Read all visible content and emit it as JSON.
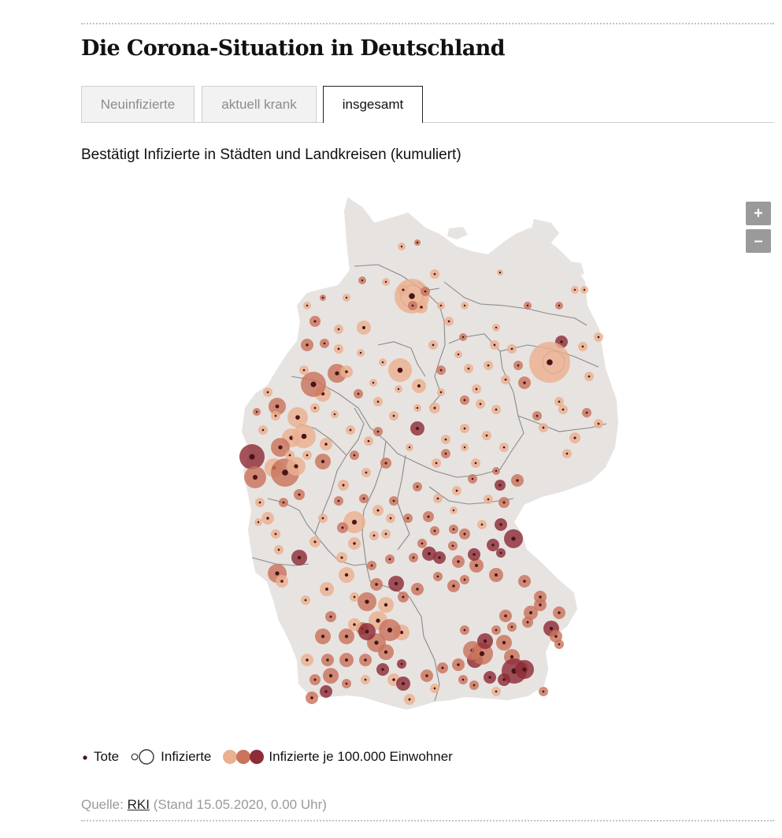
{
  "title": "Die Corona-Situation in Deutschland",
  "tabs": [
    {
      "label": "Neuinfizierte",
      "active": false
    },
    {
      "label": "aktuell krank",
      "active": false
    },
    {
      "label": "insgesamt",
      "active": true
    }
  ],
  "subtitle": "Bestätigt Infizierte in Städten und Landkreisen (kumuliert)",
  "zoom": {
    "plus": "+",
    "minus": "–"
  },
  "legend": {
    "deaths": "Tote",
    "infected": "Infizierte",
    "per100k": "Infizierte je 100.000 Einwohner"
  },
  "source": {
    "prefix": "Quelle:",
    "link": "RKI",
    "suffix": "(Stand 15.05.2020, 0.00 Uhr)"
  },
  "colors": {
    "land": "#e7e3e1",
    "border": "#8a8a8a",
    "low": "#eab08f",
    "mid": "#c9745c",
    "high": "#8e2d37",
    "death_dot": "#4a1418"
  }
}
